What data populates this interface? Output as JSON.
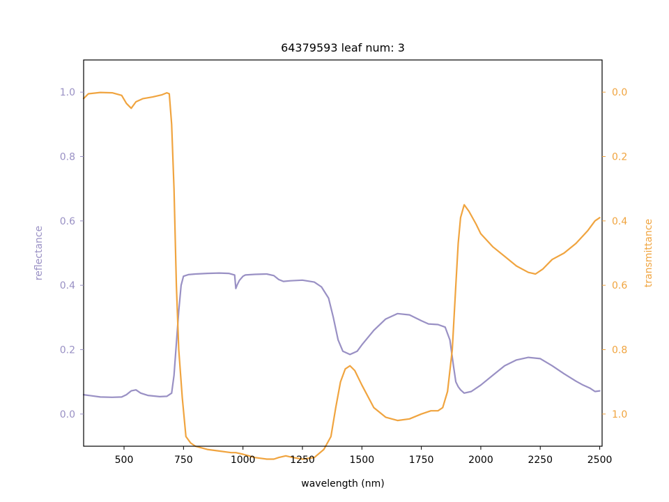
{
  "chart_data": {
    "type": "line",
    "title": "64379593 leaf num: 3",
    "xlabel": "wavelength (nm)",
    "xlim": [
      330,
      2510
    ],
    "xticks": [
      500,
      750,
      1000,
      1250,
      1500,
      1750,
      2000,
      2250,
      2500
    ],
    "xtick_labels": [
      "500",
      "750",
      "1000",
      "1250",
      "1500",
      "1750",
      "2000",
      "2250",
      "2500"
    ],
    "left_axis": {
      "label": "reflectance",
      "color": "#9990c4",
      "ylim": [
        -0.1,
        1.1
      ],
      "ticks": [
        0.0,
        0.2,
        0.4,
        0.6,
        0.8,
        1.0
      ],
      "tick_labels": [
        "0.0",
        "0.2",
        "0.4",
        "0.6",
        "0.8",
        "1.0"
      ]
    },
    "right_axis": {
      "label": "transmittance",
      "color": "#f0a43f",
      "ylim": [
        1.1,
        -0.1
      ],
      "inverted": true,
      "ticks": [
        0.0,
        0.2,
        0.4,
        0.6,
        0.8,
        1.0
      ],
      "tick_labels": [
        "0.0",
        "0.2",
        "0.4",
        "0.6",
        "0.8",
        "1.0"
      ]
    },
    "grid": false,
    "legend": "none",
    "series": [
      {
        "axis": "left",
        "color": "#9990c4",
        "points": [
          [
            330,
            0.06
          ],
          [
            400,
            0.053
          ],
          [
            450,
            0.052
          ],
          [
            490,
            0.053
          ],
          [
            510,
            0.06
          ],
          [
            530,
            0.072
          ],
          [
            550,
            0.075
          ],
          [
            570,
            0.065
          ],
          [
            600,
            0.058
          ],
          [
            650,
            0.054
          ],
          [
            680,
            0.055
          ],
          [
            700,
            0.065
          ],
          [
            710,
            0.12
          ],
          [
            720,
            0.22
          ],
          [
            730,
            0.32
          ],
          [
            740,
            0.4
          ],
          [
            750,
            0.428
          ],
          [
            770,
            0.433
          ],
          [
            800,
            0.435
          ],
          [
            850,
            0.437
          ],
          [
            900,
            0.438
          ],
          [
            940,
            0.437
          ],
          [
            965,
            0.432
          ],
          [
            970,
            0.39
          ],
          [
            975,
            0.4
          ],
          [
            985,
            0.415
          ],
          [
            1000,
            0.428
          ],
          [
            1010,
            0.432
          ],
          [
            1050,
            0.434
          ],
          [
            1100,
            0.435
          ],
          [
            1130,
            0.43
          ],
          [
            1150,
            0.418
          ],
          [
            1170,
            0.412
          ],
          [
            1200,
            0.414
          ],
          [
            1250,
            0.416
          ],
          [
            1300,
            0.41
          ],
          [
            1330,
            0.395
          ],
          [
            1360,
            0.36
          ],
          [
            1380,
            0.3
          ],
          [
            1400,
            0.23
          ],
          [
            1420,
            0.195
          ],
          [
            1450,
            0.185
          ],
          [
            1480,
            0.195
          ],
          [
            1500,
            0.215
          ],
          [
            1550,
            0.26
          ],
          [
            1600,
            0.295
          ],
          [
            1650,
            0.312
          ],
          [
            1700,
            0.308
          ],
          [
            1750,
            0.29
          ],
          [
            1780,
            0.28
          ],
          [
            1820,
            0.278
          ],
          [
            1850,
            0.27
          ],
          [
            1870,
            0.23
          ],
          [
            1885,
            0.15
          ],
          [
            1895,
            0.1
          ],
          [
            1905,
            0.085
          ],
          [
            1915,
            0.075
          ],
          [
            1930,
            0.065
          ],
          [
            1960,
            0.07
          ],
          [
            2000,
            0.09
          ],
          [
            2050,
            0.12
          ],
          [
            2100,
            0.15
          ],
          [
            2150,
            0.168
          ],
          [
            2200,
            0.176
          ],
          [
            2250,
            0.172
          ],
          [
            2300,
            0.15
          ],
          [
            2350,
            0.125
          ],
          [
            2400,
            0.102
          ],
          [
            2430,
            0.09
          ],
          [
            2460,
            0.08
          ],
          [
            2480,
            0.07
          ],
          [
            2500,
            0.072
          ]
        ]
      },
      {
        "axis": "right",
        "color": "#f0a43f",
        "points": [
          [
            330,
            0.02
          ],
          [
            350,
            0.005
          ],
          [
            400,
            0.001
          ],
          [
            450,
            0.002
          ],
          [
            490,
            0.01
          ],
          [
            510,
            0.035
          ],
          [
            530,
            0.05
          ],
          [
            550,
            0.03
          ],
          [
            580,
            0.02
          ],
          [
            620,
            0.015
          ],
          [
            660,
            0.008
          ],
          [
            680,
            0.002
          ],
          [
            690,
            0.005
          ],
          [
            700,
            0.1
          ],
          [
            710,
            0.3
          ],
          [
            720,
            0.6
          ],
          [
            730,
            0.8
          ],
          [
            745,
            0.95
          ],
          [
            760,
            1.07
          ],
          [
            780,
            1.09
          ],
          [
            800,
            1.1
          ],
          [
            850,
            1.11
          ],
          [
            900,
            1.115
          ],
          [
            950,
            1.12
          ],
          [
            970,
            1.12
          ],
          [
            1000,
            1.125
          ],
          [
            1050,
            1.135
          ],
          [
            1100,
            1.14
          ],
          [
            1130,
            1.14
          ],
          [
            1150,
            1.135
          ],
          [
            1180,
            1.13
          ],
          [
            1210,
            1.135
          ],
          [
            1250,
            1.14
          ],
          [
            1300,
            1.135
          ],
          [
            1340,
            1.11
          ],
          [
            1370,
            1.07
          ],
          [
            1390,
            0.98
          ],
          [
            1410,
            0.9
          ],
          [
            1430,
            0.86
          ],
          [
            1450,
            0.85
          ],
          [
            1470,
            0.865
          ],
          [
            1500,
            0.91
          ],
          [
            1550,
            0.98
          ],
          [
            1600,
            1.01
          ],
          [
            1650,
            1.02
          ],
          [
            1700,
            1.015
          ],
          [
            1750,
            1.0
          ],
          [
            1790,
            0.99
          ],
          [
            1820,
            0.99
          ],
          [
            1840,
            0.98
          ],
          [
            1860,
            0.93
          ],
          [
            1880,
            0.8
          ],
          [
            1895,
            0.6
          ],
          [
            1905,
            0.47
          ],
          [
            1915,
            0.39
          ],
          [
            1930,
            0.35
          ],
          [
            1950,
            0.37
          ],
          [
            1980,
            0.41
          ],
          [
            2000,
            0.44
          ],
          [
            2050,
            0.48
          ],
          [
            2100,
            0.51
          ],
          [
            2150,
            0.54
          ],
          [
            2200,
            0.56
          ],
          [
            2230,
            0.565
          ],
          [
            2260,
            0.55
          ],
          [
            2300,
            0.52
          ],
          [
            2350,
            0.5
          ],
          [
            2400,
            0.47
          ],
          [
            2450,
            0.43
          ],
          [
            2480,
            0.4
          ],
          [
            2500,
            0.39
          ]
        ]
      }
    ]
  }
}
